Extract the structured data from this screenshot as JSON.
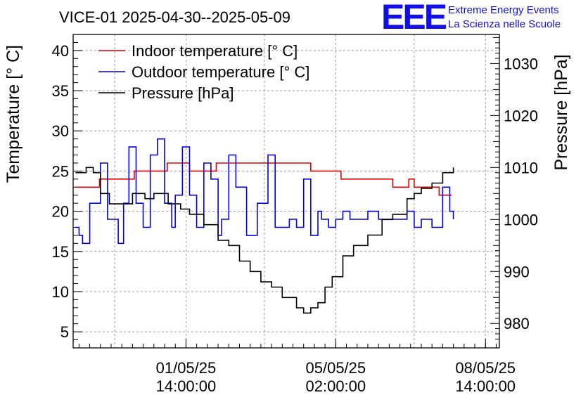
{
  "title": "VICE-01 2025-04-30--2025-05-09",
  "logo": {
    "letters": "EEE",
    "line1": "Extreme Energy Events",
    "line2": "La Scienza nelle Scuole",
    "color": "#1010e6"
  },
  "chart_data": {
    "type": "line",
    "grid": true,
    "legend_placement": "top-left",
    "ylabel_left": "Temperature [° C]",
    "ylabel_right": "Pressure [hPa]",
    "ylim_left": [
      3,
      42
    ],
    "ylim_right": [
      975.3,
      1035.6
    ],
    "xlim_hours": [
      -25.3,
      213.8
    ],
    "x_ticks": [
      {
        "hour": 38,
        "line1": "01/05/25",
        "line2": "14:00:00"
      },
      {
        "hour": 122,
        "line1": "05/05/25",
        "line2": "02:00:00"
      },
      {
        "hour": 206,
        "line1": "08/05/25",
        "line2": "14:00:00"
      }
    ],
    "y_ticks_left": [
      5,
      10,
      15,
      20,
      25,
      30,
      35,
      40
    ],
    "y_ticks_right": [
      980,
      990,
      1000,
      1010,
      1020,
      1030
    ],
    "series": [
      {
        "name": "Indoor temperature [° C]",
        "axis": "left",
        "color": "#e00000",
        "x": [
          -24,
          -12,
          -10.5,
          7.5,
          9,
          26,
          27.5,
          40,
          49,
          55,
          72,
          81,
          108,
          125,
          137,
          154,
          163,
          166,
          180,
          187
        ],
        "y": [
          23,
          23,
          24,
          24,
          25,
          25,
          26,
          25,
          25,
          26,
          26,
          26,
          25,
          24,
          24,
          23,
          24,
          23,
          22,
          22
        ]
      },
      {
        "name": "Outdoor temperature [° C]",
        "axis": "left",
        "color": "#0000e0",
        "x": [
          -24,
          -22,
          -20,
          -16,
          -10,
          -6,
          0,
          3,
          6,
          10,
          14,
          18,
          22,
          26,
          30,
          32,
          36,
          40,
          44,
          48,
          52,
          56,
          58,
          62,
          66,
          72,
          78,
          84,
          88,
          96,
          100,
          104,
          108,
          112,
          114,
          118,
          122,
          126,
          130,
          134,
          140,
          146,
          152,
          158,
          162,
          166,
          170,
          176,
          182,
          186,
          188
        ],
        "y": [
          18,
          17,
          16,
          21,
          26,
          19,
          16,
          21,
          28,
          21,
          18,
          27,
          29,
          21,
          18,
          22,
          28,
          22,
          18,
          26,
          24,
          17,
          19,
          27,
          23,
          17,
          21,
          27,
          18,
          19,
          18,
          24,
          17,
          20,
          19,
          18,
          19,
          20,
          19,
          19,
          20,
          19,
          19,
          19,
          20,
          18,
          19,
          18,
          23,
          20,
          19
        ]
      },
      {
        "name": "Pressure [hPa]",
        "axis": "right",
        "color": "#000000",
        "x": [
          -24,
          -18,
          -14,
          -10,
          -5,
          0,
          8,
          15,
          20,
          28,
          35,
          40,
          48,
          56,
          62,
          68,
          74,
          80,
          86,
          92,
          100,
          104,
          108,
          112,
          116,
          120,
          126,
          132,
          140,
          148,
          154,
          158,
          162,
          166,
          170,
          176,
          182,
          186,
          188
        ],
        "y": [
          1009,
          1010,
          1009,
          1005,
          1003,
          1003,
          1005,
          1004,
          1005,
          1003,
          1002,
          1001,
          999,
          996,
          995,
          992,
          990,
          988,
          987,
          985,
          983,
          982,
          983,
          984,
          987,
          989,
          993,
          995,
          997,
          1000,
          1001,
          1001,
          1004,
          1005,
          1006,
          1007,
          1009,
          1009,
          1010
        ]
      }
    ]
  }
}
